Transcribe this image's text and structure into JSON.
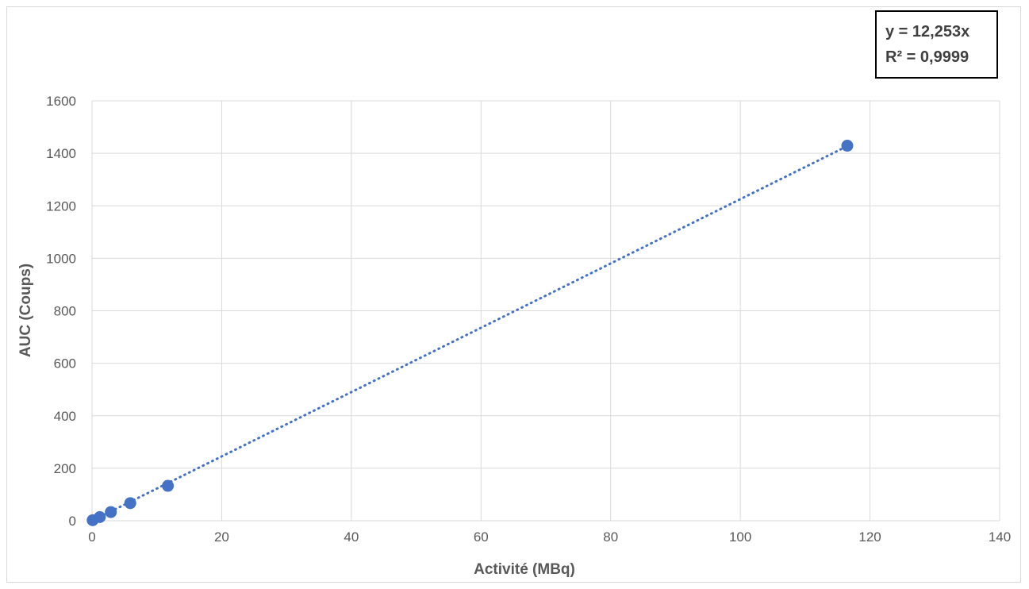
{
  "chart_data": {
    "type": "scatter",
    "title": "",
    "xlabel": "Activité (MBq)",
    "ylabel": "AUC (Coups)",
    "xlim": [
      0,
      140
    ],
    "ylim": [
      0,
      1600
    ],
    "x_ticks": [
      0,
      20,
      40,
      60,
      80,
      100,
      120,
      140
    ],
    "y_ticks": [
      0,
      200,
      400,
      600,
      800,
      1000,
      1200,
      1400,
      1600
    ],
    "grid": true,
    "legend": "none",
    "series": [
      {
        "x": [
          0.1,
          1.2,
          2.9,
          5.9,
          11.7,
          116.5
        ],
        "y": [
          2,
          14,
          33,
          67,
          133,
          1429
        ],
        "color": "#4472c4"
      }
    ],
    "trendline": {
      "type": "linear",
      "slope": 12.253,
      "intercept": 0,
      "style": "dotted",
      "color": "#4472c4",
      "equation_label": "y = 12,253x",
      "r2_label": "R² = 0,9999"
    },
    "colors": {
      "marker": "#4472c4",
      "grid": "#d9d9d9",
      "text": "#595959"
    }
  }
}
